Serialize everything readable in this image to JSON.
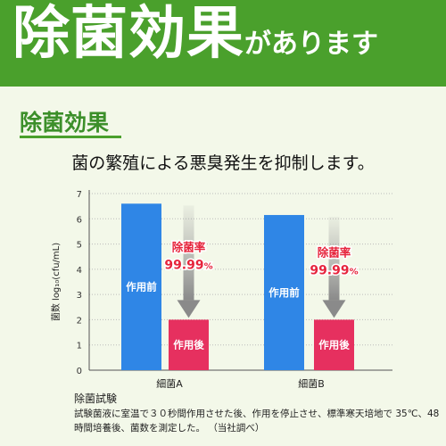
{
  "banner": {
    "title_main": "除菌効果",
    "title_tail": "があります",
    "color": "#4aa02c"
  },
  "section": {
    "title": "除菌効果",
    "subtitle": "菌の繁殖による悪臭発生を抑制します。"
  },
  "chart_data": {
    "type": "bar",
    "title": "",
    "ylabel": "菌数 log₁₀(cfu/mL)",
    "xlabel": "",
    "ylim": [
      0,
      7
    ],
    "yticks": [
      "0",
      "1",
      "2",
      "3",
      "4",
      "5",
      "6",
      "7"
    ],
    "categories": [
      "細菌A",
      "細菌B"
    ],
    "series": [
      {
        "name": "作用前",
        "values": [
          6.6,
          6.15
        ],
        "color": "#2f86e6"
      },
      {
        "name": "作用後",
        "values": [
          2.0,
          2.0
        ],
        "color": "#e6305f"
      }
    ],
    "annotations": [
      {
        "label": "除菌率",
        "value": "99.99",
        "unit": "%",
        "color": "#e6243c"
      },
      {
        "label": "除菌率",
        "value": "99.99",
        "unit": "%",
        "color": "#e6243c"
      }
    ],
    "grid": true
  },
  "note": {
    "title": "除菌試験",
    "body": "試験菌液に室温で３０秒間作用させた後、作用を停止させ、標準寒天培地で 35℃、48 時間培養後、菌数を測定した。 （当社調べ）"
  }
}
